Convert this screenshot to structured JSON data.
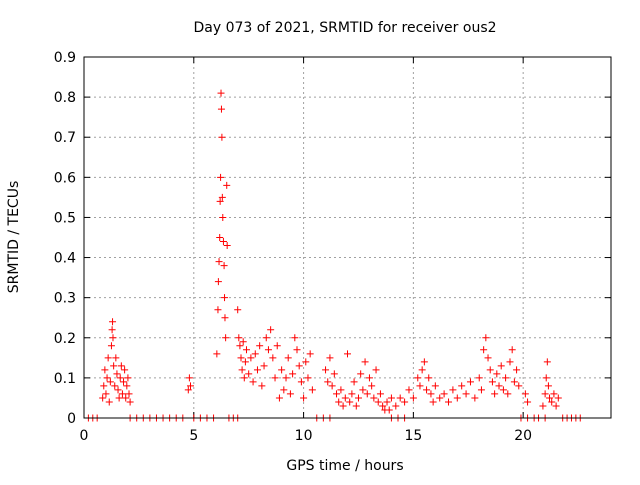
{
  "chart_data": {
    "type": "scatter",
    "title": "Day 073 of 2021, SRMTID for receiver ous2",
    "xlabel": "GPS time / hours",
    "ylabel": "SRMTID / TECUs",
    "xlim": [
      0,
      24
    ],
    "ylim": [
      0,
      0.9
    ],
    "xticks": [
      0,
      5,
      10,
      15,
      20
    ],
    "yticks": [
      0,
      0.1,
      0.2,
      0.3,
      0.4,
      0.5,
      0.6,
      0.7,
      0.8,
      0.9
    ],
    "ytick_labels": [
      "0",
      "0.1",
      "0.2",
      "0.3",
      "0.4",
      "0.5",
      "0.6",
      "0.7",
      "0.8",
      "0.9"
    ],
    "grid": true,
    "marker": "plus",
    "series": [
      {
        "name": "SRMTID",
        "color": "#ff0000",
        "points": [
          [
            0.2,
            0
          ],
          [
            0.4,
            0
          ],
          [
            0.6,
            0
          ],
          [
            0.85,
            0.05
          ],
          [
            0.9,
            0.08
          ],
          [
            0.95,
            0.12
          ],
          [
            1.0,
            0.06
          ],
          [
            1.05,
            0.1
          ],
          [
            1.1,
            0.15
          ],
          [
            1.15,
            0.04
          ],
          [
            1.2,
            0.09
          ],
          [
            1.25,
            0.18
          ],
          [
            1.28,
            0.22
          ],
          [
            1.3,
            0.24
          ],
          [
            1.32,
            0.2
          ],
          [
            1.35,
            0.13
          ],
          [
            1.4,
            0.08
          ],
          [
            1.45,
            0.15
          ],
          [
            1.5,
            0.11
          ],
          [
            1.55,
            0.07
          ],
          [
            1.6,
            0.05
          ],
          [
            1.65,
            0.1
          ],
          [
            1.7,
            0.13
          ],
          [
            1.75,
            0.06
          ],
          [
            1.8,
            0.09
          ],
          [
            1.85,
            0.12
          ],
          [
            1.9,
            0.05
          ],
          [
            1.95,
            0.08
          ],
          [
            2.0,
            0.1
          ],
          [
            2.05,
            0.06
          ],
          [
            2.1,
            0.04
          ],
          [
            2.1,
            0
          ],
          [
            2.4,
            0
          ],
          [
            2.7,
            0
          ],
          [
            3.0,
            0
          ],
          [
            3.3,
            0
          ],
          [
            3.6,
            0
          ],
          [
            3.9,
            0
          ],
          [
            4.2,
            0
          ],
          [
            4.5,
            0
          ],
          [
            4.75,
            0.07
          ],
          [
            4.8,
            0.1
          ],
          [
            4.85,
            0.08
          ],
          [
            5.0,
            0
          ],
          [
            5.3,
            0
          ],
          [
            5.6,
            0
          ],
          [
            5.9,
            0
          ],
          [
            6.05,
            0.16
          ],
          [
            6.1,
            0.27
          ],
          [
            6.12,
            0.34
          ],
          [
            6.15,
            0.39
          ],
          [
            6.18,
            0.45
          ],
          [
            6.2,
            0.54
          ],
          [
            6.22,
            0.6
          ],
          [
            6.24,
            0.81
          ],
          [
            6.26,
            0.77
          ],
          [
            6.28,
            0.7
          ],
          [
            6.3,
            0.55
          ],
          [
            6.32,
            0.5
          ],
          [
            6.35,
            0.44
          ],
          [
            6.38,
            0.38
          ],
          [
            6.4,
            0.3
          ],
          [
            6.42,
            0.25
          ],
          [
            6.45,
            0.2
          ],
          [
            6.5,
            0.58
          ],
          [
            6.52,
            0.43
          ],
          [
            6.6,
            0
          ],
          [
            6.8,
            0
          ],
          [
            7.0,
            0
          ],
          [
            7.0,
            0.27
          ],
          [
            7.05,
            0.2
          ],
          [
            7.1,
            0.18
          ],
          [
            7.15,
            0.15
          ],
          [
            7.2,
            0.12
          ],
          [
            7.25,
            0.19
          ],
          [
            7.3,
            0.1
          ],
          [
            7.35,
            0.14
          ],
          [
            7.4,
            0.17
          ],
          [
            7.5,
            0.11
          ],
          [
            7.6,
            0.15
          ],
          [
            7.7,
            0.09
          ],
          [
            7.8,
            0.16
          ],
          [
            7.9,
            0.12
          ],
          [
            8.0,
            0.18
          ],
          [
            8.1,
            0.08
          ],
          [
            8.2,
            0.13
          ],
          [
            8.3,
            0.2
          ],
          [
            8.4,
            0.17
          ],
          [
            8.5,
            0.22
          ],
          [
            8.6,
            0.15
          ],
          [
            8.7,
            0.1
          ],
          [
            8.8,
            0.18
          ],
          [
            8.9,
            0.05
          ],
          [
            9.0,
            0.12
          ],
          [
            9.1,
            0.07
          ],
          [
            9.2,
            0.1
          ],
          [
            9.3,
            0.15
          ],
          [
            9.4,
            0.06
          ],
          [
            9.5,
            0.11
          ],
          [
            9.6,
            0.2
          ],
          [
            9.7,
            0.17
          ],
          [
            9.8,
            0.13
          ],
          [
            9.9,
            0.09
          ],
          [
            10.0,
            0.05
          ],
          [
            10.1,
            0.14
          ],
          [
            10.2,
            0.1
          ],
          [
            10.3,
            0.16
          ],
          [
            10.4,
            0.07
          ],
          [
            10.6,
            0
          ],
          [
            10.9,
            0
          ],
          [
            11.2,
            0
          ],
          [
            11.0,
            0.12
          ],
          [
            11.1,
            0.09
          ],
          [
            11.2,
            0.15
          ],
          [
            11.3,
            0.08
          ],
          [
            11.4,
            0.11
          ],
          [
            11.5,
            0.06
          ],
          [
            11.6,
            0.04
          ],
          [
            11.7,
            0.07
          ],
          [
            11.8,
            0.03
          ],
          [
            11.9,
            0.05
          ],
          [
            12.0,
            0.16
          ],
          [
            12.1,
            0.04
          ],
          [
            12.2,
            0.06
          ],
          [
            12.3,
            0.09
          ],
          [
            12.4,
            0.03
          ],
          [
            12.5,
            0.05
          ],
          [
            12.6,
            0.11
          ],
          [
            12.7,
            0.07
          ],
          [
            12.8,
            0.14
          ],
          [
            12.9,
            0.06
          ],
          [
            13.0,
            0.1
          ],
          [
            13.1,
            0.08
          ],
          [
            13.2,
            0.05
          ],
          [
            13.3,
            0.12
          ],
          [
            13.4,
            0.04
          ],
          [
            13.5,
            0.06
          ],
          [
            13.6,
            0.03
          ],
          [
            13.7,
            0.02
          ],
          [
            13.8,
            0.04
          ],
          [
            13.9,
            0.02
          ],
          [
            14.0,
            0.05
          ],
          [
            14.0,
            0
          ],
          [
            14.3,
            0
          ],
          [
            14.6,
            0
          ],
          [
            14.2,
            0.03
          ],
          [
            14.4,
            0.05
          ],
          [
            14.6,
            0.04
          ],
          [
            14.8,
            0.07
          ],
          [
            15.0,
            0.05
          ],
          [
            15.2,
            0.1
          ],
          [
            15.3,
            0.08
          ],
          [
            15.4,
            0.12
          ],
          [
            15.5,
            0.14
          ],
          [
            15.6,
            0.07
          ],
          [
            15.7,
            0.1
          ],
          [
            15.8,
            0.06
          ],
          [
            15.9,
            0.04
          ],
          [
            16.0,
            0.08
          ],
          [
            16.2,
            0.05
          ],
          [
            16.4,
            0.06
          ],
          [
            16.6,
            0.04
          ],
          [
            16.8,
            0.07
          ],
          [
            17.0,
            0.05
          ],
          [
            17.2,
            0.08
          ],
          [
            17.4,
            0.06
          ],
          [
            17.6,
            0.09
          ],
          [
            17.8,
            0.05
          ],
          [
            18.0,
            0.1
          ],
          [
            18.1,
            0.07
          ],
          [
            18.2,
            0.17
          ],
          [
            18.3,
            0.2
          ],
          [
            18.4,
            0.15
          ],
          [
            18.5,
            0.12
          ],
          [
            18.6,
            0.09
          ],
          [
            18.7,
            0.06
          ],
          [
            18.8,
            0.11
          ],
          [
            18.9,
            0.08
          ],
          [
            19.0,
            0.13
          ],
          [
            19.1,
            0.07
          ],
          [
            19.2,
            0.1
          ],
          [
            19.3,
            0.06
          ],
          [
            19.4,
            0.14
          ],
          [
            19.5,
            0.17
          ],
          [
            19.6,
            0.09
          ],
          [
            19.7,
            0.12
          ],
          [
            19.8,
            0.08
          ],
          [
            19.9,
            0
          ],
          [
            20.2,
            0
          ],
          [
            20.5,
            0
          ],
          [
            20.1,
            0.06
          ],
          [
            20.2,
            0.04
          ],
          [
            20.7,
            0
          ],
          [
            21.0,
            0
          ],
          [
            20.9,
            0.03
          ],
          [
            21.0,
            0.06
          ],
          [
            21.05,
            0.1
          ],
          [
            21.1,
            0.14
          ],
          [
            21.15,
            0.08
          ],
          [
            21.2,
            0.05
          ],
          [
            21.3,
            0.04
          ],
          [
            21.4,
            0.06
          ],
          [
            21.5,
            0.03
          ],
          [
            21.6,
            0.05
          ],
          [
            21.8,
            0
          ],
          [
            22.0,
            0
          ],
          [
            22.2,
            0
          ],
          [
            22.4,
            0
          ],
          [
            22.6,
            0
          ]
        ]
      }
    ]
  }
}
